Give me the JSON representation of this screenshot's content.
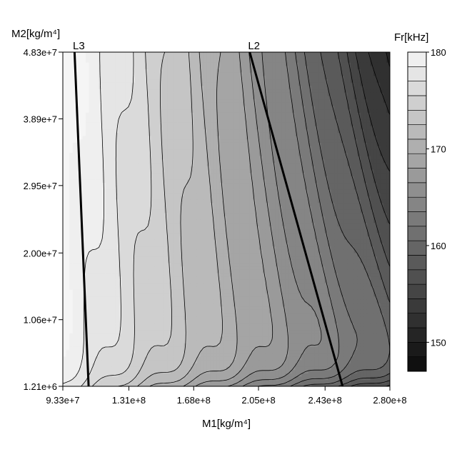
{
  "chart_data": {
    "type": "heatmap",
    "subtype": "filled-contour",
    "title": "",
    "xlabel": "M1[kg/m⁴]",
    "ylabel": "M2[kg/m⁴]",
    "xlim": [
      93300000.0,
      280000000.0
    ],
    "ylim": [
      1210000.0,
      48300000.0
    ],
    "x_ticks": [
      {
        "value": 93300000.0,
        "label": "9.33e+7"
      },
      {
        "value": 131000000.0,
        "label": "1.31e+8"
      },
      {
        "value": 168000000.0,
        "label": "1.68e+8"
      },
      {
        "value": 205000000.0,
        "label": "2.05e+8"
      },
      {
        "value": 243000000.0,
        "label": "2.43e+8"
      },
      {
        "value": 280000000.0,
        "label": "2.80e+8"
      }
    ],
    "y_ticks": [
      {
        "value": 1210000.0,
        "label": "1.21e+6"
      },
      {
        "value": 10600000.0,
        "label": "1.06e+7"
      },
      {
        "value": 20000000.0,
        "label": "2.00e+7"
      },
      {
        "value": 29500000.0,
        "label": "2.95e+7"
      },
      {
        "value": 38900000.0,
        "label": "3.89e+7"
      },
      {
        "value": 48300000.0,
        "label": "4.83e+7"
      }
    ],
    "colorbar": {
      "title": "Fr[kHz]",
      "min": 147,
      "max": 180,
      "levels": [
        147,
        148.5,
        150,
        151.5,
        153,
        154.5,
        156,
        157.5,
        159,
        160.5,
        162,
        163.5,
        165,
        166.5,
        168,
        169.5,
        171,
        172.5,
        174,
        175.5,
        177,
        178.5,
        180
      ],
      "tick_labels": [
        {
          "value": 180,
          "label": "180"
        },
        {
          "value": 170,
          "label": "170"
        },
        {
          "value": 160,
          "label": "160"
        },
        {
          "value": 150,
          "label": "150"
        }
      ],
      "color_low": "#000000",
      "color_high": "#ffffff"
    },
    "grid": false,
    "lines": [
      {
        "name": "L3",
        "points": [
          [
            100000000.0,
            48300000.0
          ],
          [
            108000000.0,
            1210000.0
          ]
        ]
      },
      {
        "name": "L2",
        "points": [
          [
            200000000.0,
            48300000.0
          ],
          [
            253000000.0,
            1210000.0
          ]
        ]
      }
    ]
  }
}
